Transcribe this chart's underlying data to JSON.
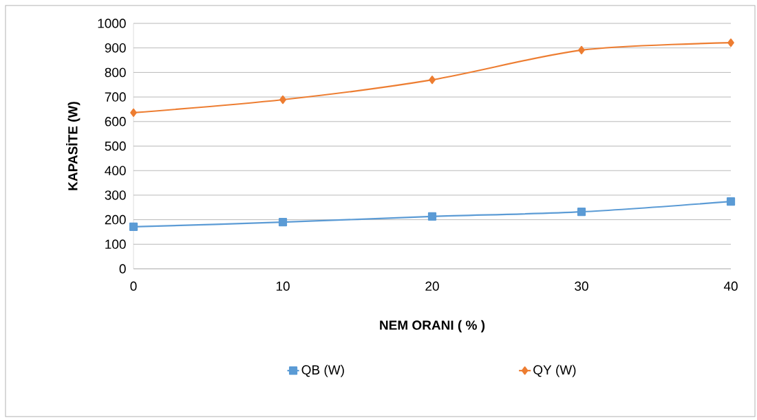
{
  "chart_data": {
    "type": "line",
    "xlabel": "NEM ORANI  ( % )",
    "ylabel": "KAPASİTE (W)",
    "x": [
      0,
      10,
      20,
      30,
      40
    ],
    "series": [
      {
        "name": "QB (W)",
        "color": "#5b9bd5",
        "marker": "square",
        "values": [
          171,
          190,
          213,
          232,
          274
        ]
      },
      {
        "name": "QY (W)",
        "color": "#ed7d31",
        "marker": "diamond",
        "values": [
          636,
          689,
          770,
          891,
          921
        ]
      }
    ],
    "xlim": [
      0,
      40
    ],
    "xticks": [
      0,
      10,
      20,
      30,
      40
    ],
    "ylim": [
      0,
      1000
    ],
    "yticks": [
      0,
      100,
      200,
      300,
      400,
      500,
      600,
      700,
      800,
      900,
      1000
    ],
    "grid": "y",
    "legend": "bottom",
    "line_style": "solid"
  }
}
